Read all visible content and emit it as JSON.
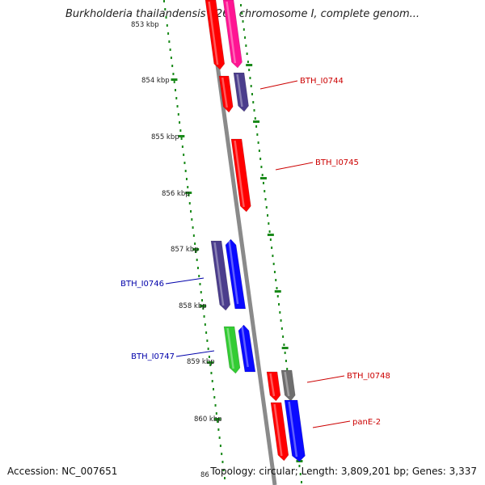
{
  "title": "Burkholderia thailandensis E264 chromosome I, complete genom...",
  "footer": {
    "accession": "Accession: NC_007651",
    "summary": "Topology: circular; Length: 3,809,201 bp; Genes: 3,337"
  },
  "ticks": [
    {
      "label": "853 kbp"
    },
    {
      "label": "854 kbp"
    },
    {
      "label": "855 kbp"
    },
    {
      "label": "856 kbp"
    },
    {
      "label": "857 kbp"
    },
    {
      "label": "858 kbp"
    },
    {
      "label": "859 kbp"
    },
    {
      "label": "860 kbp"
    },
    {
      "label": "86"
    }
  ],
  "genes": [
    {
      "label": "BTH_I0744",
      "label_color": "#cc0000"
    },
    {
      "label": "BTH_I0745",
      "label_color": "#cc0000"
    },
    {
      "label": "BTH_I0746",
      "label_color": "#0000aa"
    },
    {
      "label": "BTH_I0747",
      "label_color": "#0000aa"
    },
    {
      "label": "BTH_I0748",
      "label_color": "#cc0000"
    },
    {
      "label": "panE-2",
      "label_color": "#cc0000"
    }
  ],
  "colors": {
    "backbone": "#8a8a8a",
    "gc_dots": "#1a8a1a",
    "red": "#ff0000",
    "magenta": "#ff1493",
    "purple": "#4b3d8c",
    "blue": "#0a0aff",
    "green": "#33cc33",
    "gray": "#6e6e6e"
  }
}
